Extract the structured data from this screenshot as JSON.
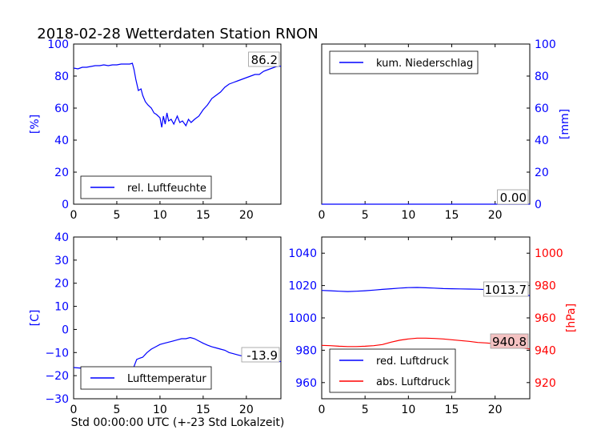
{
  "title": "2018-02-28 Wetterdaten Station RNON",
  "colors": {
    "blue": "#0000ff",
    "red": "#ff0000",
    "label_box_red": "#f4c2c2"
  },
  "chart_data": [
    {
      "id": "humidity",
      "type": "line",
      "ylabel": "[%]",
      "xlim": [
        0,
        24
      ],
      "ylim": [
        0,
        100
      ],
      "xticks": [
        "0",
        "5",
        "10",
        "15",
        "20"
      ],
      "yticks": [
        "0",
        "20",
        "40",
        "60",
        "80",
        "100"
      ],
      "axis_side": "left",
      "legend": [
        "rel. Luftfeuchte"
      ],
      "legend_position": "lower-left",
      "end_label": "86.2",
      "series": [
        {
          "name": "rel. Luftfeuchte",
          "color": "#0000ff",
          "x": [
            0,
            0.5,
            1,
            1.5,
            2,
            2.5,
            3,
            3.5,
            4,
            4.5,
            5,
            5.5,
            6,
            6.5,
            6.8,
            7,
            7.2,
            7.5,
            7.8,
            8,
            8.3,
            8.6,
            9,
            9.3,
            9.6,
            10,
            10.2,
            10.4,
            10.6,
            10.8,
            11,
            11.3,
            11.6,
            12,
            12.3,
            12.6,
            13,
            13.3,
            13.6,
            14,
            14.5,
            15,
            15.5,
            16,
            16.5,
            17,
            17.5,
            18,
            18.5,
            19,
            19.5,
            20,
            20.5,
            21,
            21.5,
            22,
            22.5,
            23,
            23.5,
            24
          ],
          "y": [
            85,
            84.5,
            85.5,
            85.5,
            86,
            86.5,
            86.5,
            87,
            86.5,
            87,
            87,
            87.5,
            87.5,
            87.5,
            88,
            84,
            78,
            71,
            72,
            68,
            64,
            62,
            60,
            57,
            56,
            54,
            48,
            55,
            50,
            57,
            52,
            53,
            50,
            55,
            51,
            52,
            49,
            53,
            51,
            53,
            55,
            59,
            62,
            66,
            68,
            70,
            73,
            75,
            76,
            77,
            78,
            79,
            80,
            81,
            81,
            83,
            84,
            85,
            86,
            86.2
          ]
        }
      ]
    },
    {
      "id": "precipitation",
      "type": "line",
      "ylabel": "[mm]",
      "xlim": [
        0,
        24
      ],
      "ylim": [
        0,
        100
      ],
      "xticks": [
        "0",
        "5",
        "10",
        "15",
        "20"
      ],
      "yticks": [
        "0",
        "20",
        "40",
        "60",
        "80",
        "100"
      ],
      "axis_side": "right",
      "legend": [
        "kum. Niederschlag"
      ],
      "legend_position": "upper-left",
      "end_label": "0.00",
      "series": [
        {
          "name": "kum. Niederschlag",
          "color": "#0000ff",
          "x": [
            0,
            24
          ],
          "y": [
            0,
            0
          ]
        }
      ]
    },
    {
      "id": "temperature",
      "type": "line",
      "ylabel": "[C]",
      "xlabel": "Std 00:00:00 UTC (+-23 Std Lokalzeit)",
      "xlim": [
        0,
        24
      ],
      "ylim": [
        -30,
        40
      ],
      "xticks": [
        "0",
        "5",
        "10",
        "15",
        "20"
      ],
      "yticks": [
        "−30",
        "−20",
        "−10",
        "0",
        "10",
        "20",
        "30",
        "40"
      ],
      "axis_side": "left",
      "legend": [
        "Lufttemperatur"
      ],
      "legend_position": "lower-left",
      "end_label": "-13.9",
      "series": [
        {
          "name": "Lufttemperatur",
          "color": "#0000ff",
          "x": [
            0,
            1,
            2,
            3,
            4,
            5,
            6,
            6.8,
            7,
            7.3,
            7.6,
            8,
            8.5,
            9,
            9.5,
            10,
            10.5,
            11,
            11.5,
            12,
            12.5,
            13,
            13.5,
            14,
            14.5,
            15,
            15.5,
            16,
            16.5,
            17,
            17.5,
            18,
            18.5,
            19,
            19.5,
            20,
            20.5,
            21,
            21.5,
            22,
            22.5,
            23,
            23.5,
            24
          ],
          "y": [
            -16.5,
            -16.8,
            -17,
            -17.3,
            -17.5,
            -17.8,
            -18,
            -18,
            -16,
            -13,
            -12.5,
            -12,
            -10,
            -8.5,
            -7.5,
            -6.5,
            -6,
            -5.5,
            -5,
            -4.5,
            -4,
            -4,
            -3.5,
            -4,
            -5,
            -6,
            -6.8,
            -7.5,
            -8,
            -8.5,
            -9,
            -10,
            -10.5,
            -11,
            -11.5,
            -12,
            -12.5,
            -13,
            -13.3,
            -13.6,
            -13.8,
            -13.9,
            -13.9,
            -13.9
          ]
        }
      ]
    },
    {
      "id": "pressure",
      "type": "line",
      "ylabel_right": "[hPa]",
      "xlim": [
        0,
        24
      ],
      "ylim": [
        950,
        1050
      ],
      "ylim_right": [
        910,
        1010
      ],
      "xticks": [
        "0",
        "5",
        "10",
        "15",
        "20"
      ],
      "yticks": [
        "960",
        "980",
        "1000",
        "1020",
        "1040"
      ],
      "yticks_right": [
        "920",
        "940",
        "960",
        "980",
        "1000"
      ],
      "legend": [
        "red. Luftdruck",
        "abs. Luftdruck"
      ],
      "legend_position": "lower-left",
      "end_labels": [
        "1013.7",
        "940.8"
      ],
      "series": [
        {
          "name": "red. Luftdruck",
          "color": "#0000ff",
          "axis": "left",
          "x": [
            0,
            1,
            2,
            3,
            4,
            5,
            6,
            7,
            8,
            9,
            10,
            11,
            12,
            13,
            14,
            15,
            16,
            17,
            18,
            19,
            20,
            21,
            22,
            23,
            24
          ],
          "y": [
            1017,
            1016.8,
            1016.5,
            1016.3,
            1016.5,
            1016.8,
            1017.2,
            1017.6,
            1018,
            1018.4,
            1018.7,
            1018.8,
            1018.6,
            1018.4,
            1018.1,
            1018,
            1017.9,
            1017.8,
            1017.7,
            1017.5,
            1017.3,
            1016.8,
            1016,
            1015,
            1013.7
          ]
        },
        {
          "name": "abs. Luftdruck",
          "color": "#ff0000",
          "axis": "right",
          "x": [
            0,
            1,
            2,
            3,
            4,
            5,
            6,
            7,
            8,
            9,
            10,
            11,
            12,
            13,
            14,
            15,
            16,
            17,
            18,
            19,
            20,
            21,
            22,
            23,
            24
          ],
          "y": [
            943,
            942.8,
            942.5,
            942.3,
            942.3,
            942.5,
            942.8,
            943.5,
            945,
            946.2,
            947,
            947.5,
            947.5,
            947.3,
            947,
            946.5,
            946,
            945.5,
            944.8,
            944.5,
            944,
            943.2,
            942.2,
            941.5,
            940.8
          ]
        }
      ]
    }
  ]
}
